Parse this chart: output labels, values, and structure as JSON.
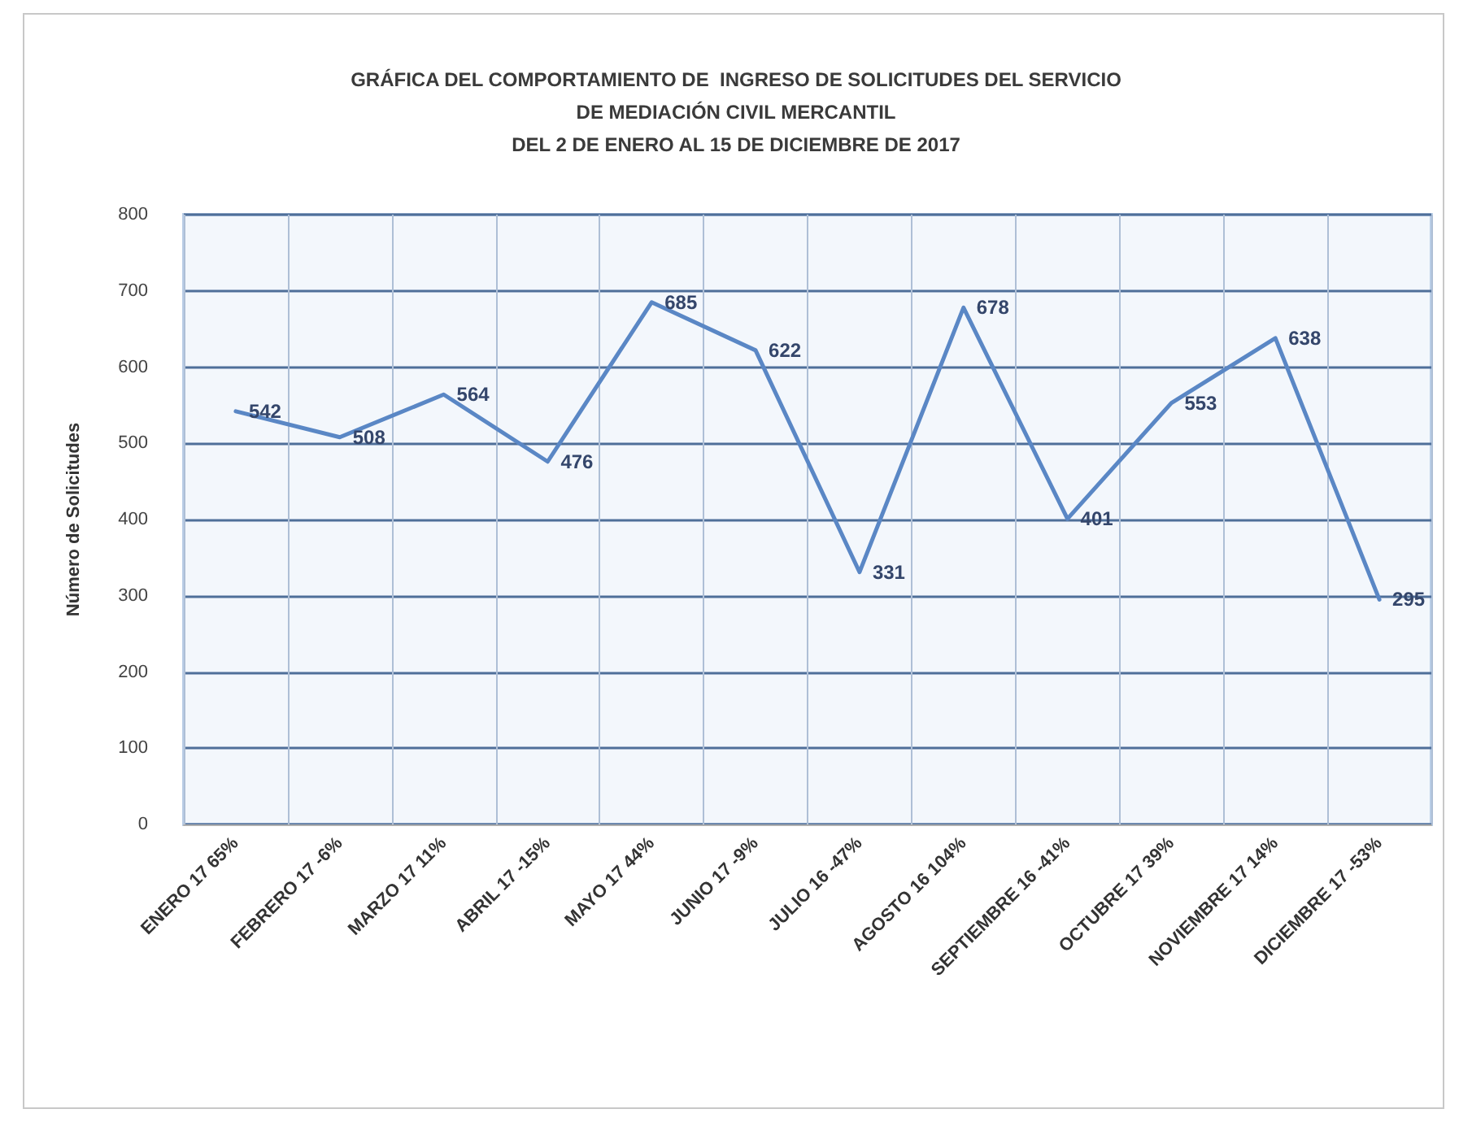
{
  "chart_data": {
    "type": "line",
    "title": "GRÁFICA DEL COMPORTAMIENTO DE  INGRESO DE SOLICITUDES DEL SERVICIO\nDE MEDIACIÓN CIVIL MERCANTIL",
    "subtitle": "DEL 2 DE ENERO AL 15 DE DICIEMBRE DE 2017",
    "ylabel": "Número de Solicitudes",
    "categories": [
      "ENERO 17 65%",
      "FEBRERO 17 -6%",
      "MARZO 17 11%",
      "ABRIL 17 -15%",
      "MAYO 17 44%",
      "JUNIO 17 -9%",
      "JULIO 16 -47%",
      "AGOSTO 16 104%",
      "SEPTIEMBRE 16 -41%",
      "OCTUBRE 17 39%",
      "NOVIEMBRE 17 14%",
      "DICIEMBRE 17 -53%"
    ],
    "series": [
      {
        "color": "#5a87c5",
        "values": [
          542,
          508,
          564,
          476,
          685,
          622,
          331,
          678,
          401,
          553,
          638,
          295
        ]
      }
    ],
    "ylim": [
      0,
      800
    ],
    "yticks": [
      0,
      100,
      200,
      300,
      400,
      500,
      600,
      700,
      800
    ],
    "grid": true,
    "marker": "none",
    "line_style": "solid",
    "data_labels": true
  }
}
